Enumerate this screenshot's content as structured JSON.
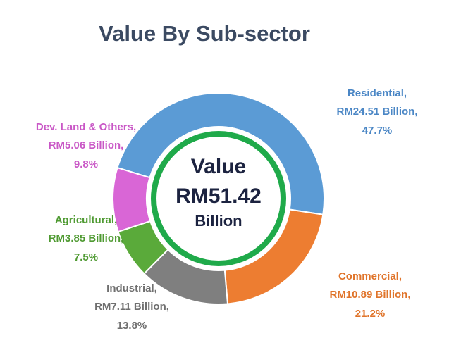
{
  "chart_data": {
    "type": "pie",
    "donut": true,
    "title": "Value By Sub-sector",
    "center_label": [
      "Value",
      "RM51.42",
      "Billion"
    ],
    "categories": [
      "Residential,",
      "Commercial,",
      "Industrial,",
      "Agricultural,",
      "Dev. Land & Others,"
    ],
    "values": [
      47.7,
      21.2,
      13.8,
      7.5,
      9.8
    ],
    "value_labels": [
      "47.7%",
      "21.2%",
      "13.8%",
      "7.5%",
      "9.8%"
    ],
    "amounts": [
      24.51,
      10.89,
      7.11,
      3.85,
      5.06
    ],
    "amount_labels": [
      "RM24.51 Billion,",
      "RM10.89 Billion,",
      "RM7.11 Billion,",
      "RM3.85 Billion,",
      "RM5.06 Billion,"
    ],
    "colors": [
      "#5b9bd5",
      "#ed7d31",
      "#7f7f7f",
      "#5aaa3a",
      "#d966d6"
    ],
    "label_colors": [
      "#4a86c5",
      "#e0742a",
      "#6f6f6f",
      "#4f9a32",
      "#c957c6"
    ]
  }
}
